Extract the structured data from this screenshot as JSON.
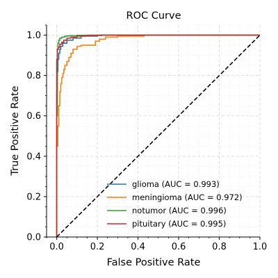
{
  "chart_data": {
    "type": "line",
    "title": "ROC Curve",
    "xlabel": "False Positive Rate",
    "ylabel": "True Positive Rate",
    "xlim": [
      -0.05,
      1.0
    ],
    "ylim": [
      0.0,
      1.05
    ],
    "xticks": [
      0.0,
      0.2,
      0.4,
      0.6,
      0.8,
      1.0
    ],
    "yticks": [
      0.0,
      0.2,
      0.4,
      0.6,
      0.8,
      1.0
    ],
    "xtick_labels": [
      "0.0",
      "0.2",
      "0.4",
      "0.6",
      "0.8",
      "1.0"
    ],
    "ytick_labels": [
      "0.0",
      "0.2",
      "0.4",
      "0.6",
      "0.8",
      "1.0"
    ],
    "grid": true,
    "legend_position": "lower-right",
    "series": [
      {
        "name": "glioma (AUC = 0.993)",
        "color": "#1f77b4",
        "x": [
          0.0,
          0.0,
          0.003,
          0.003,
          0.006,
          0.006,
          0.01,
          0.01,
          0.015,
          0.015,
          0.02,
          0.02,
          0.03,
          0.03,
          0.05,
          0.05,
          0.08,
          0.08,
          0.12,
          0.12,
          0.2,
          0.2,
          1.0
        ],
        "y": [
          0.0,
          0.72,
          0.72,
          0.82,
          0.82,
          0.88,
          0.88,
          0.91,
          0.91,
          0.93,
          0.93,
          0.945,
          0.945,
          0.96,
          0.96,
          0.975,
          0.975,
          0.985,
          0.985,
          0.995,
          0.995,
          1.0,
          1.0
        ]
      },
      {
        "name": "meningioma (AUC = 0.972)",
        "color": "#ff7f0e",
        "x": [
          0.0,
          0.0,
          0.005,
          0.005,
          0.01,
          0.01,
          0.015,
          0.015,
          0.02,
          0.02,
          0.025,
          0.025,
          0.03,
          0.03,
          0.035,
          0.035,
          0.04,
          0.04,
          0.05,
          0.05,
          0.06,
          0.06,
          0.07,
          0.07,
          0.08,
          0.08,
          0.1,
          0.1,
          0.12,
          0.12,
          0.19,
          0.19,
          0.21,
          0.21,
          0.24,
          0.24,
          0.3,
          0.3,
          0.43,
          0.43,
          1.0
        ],
        "y": [
          0.0,
          0.45,
          0.45,
          0.55,
          0.55,
          0.65,
          0.65,
          0.72,
          0.72,
          0.76,
          0.76,
          0.79,
          0.79,
          0.81,
          0.81,
          0.83,
          0.83,
          0.85,
          0.85,
          0.87,
          0.87,
          0.89,
          0.89,
          0.91,
          0.91,
          0.93,
          0.93,
          0.945,
          0.945,
          0.95,
          0.95,
          0.97,
          0.97,
          0.98,
          0.98,
          0.99,
          0.99,
          0.995,
          0.995,
          1.0,
          1.0
        ]
      },
      {
        "name": "notumor (AUC = 0.996)",
        "color": "#2ca02c",
        "x": [
          0.0,
          0.0,
          0.003,
          0.003,
          0.006,
          0.006,
          0.01,
          0.01,
          0.015,
          0.015,
          0.025,
          0.025,
          0.04,
          0.04,
          0.06,
          0.06,
          0.1,
          0.1,
          0.15,
          0.15,
          1.0
        ],
        "y": [
          0.0,
          0.6,
          0.6,
          0.93,
          0.93,
          0.96,
          0.96,
          0.975,
          0.975,
          0.985,
          0.985,
          0.99,
          0.99,
          0.995,
          0.995,
          0.997,
          0.997,
          0.999,
          0.999,
          1.0,
          1.0
        ]
      },
      {
        "name": "pituitary (AUC = 0.995)",
        "color": "#d62728",
        "x": [
          0.0,
          0.0,
          0.003,
          0.003,
          0.008,
          0.008,
          0.015,
          0.015,
          0.025,
          0.025,
          0.035,
          0.035,
          0.05,
          0.05,
          0.07,
          0.07,
          0.1,
          0.1,
          0.14,
          0.14,
          0.22,
          0.22,
          1.0
        ],
        "y": [
          0.0,
          0.88,
          0.88,
          0.93,
          0.93,
          0.94,
          0.94,
          0.955,
          0.955,
          0.965,
          0.965,
          0.975,
          0.975,
          0.985,
          0.985,
          0.99,
          0.99,
          0.995,
          0.995,
          0.998,
          0.998,
          1.0,
          1.0
        ]
      }
    ],
    "reference_line": {
      "x": [
        0.0,
        1.0
      ],
      "y": [
        0.0,
        1.0
      ],
      "style": "dashed",
      "color": "#000000"
    }
  }
}
